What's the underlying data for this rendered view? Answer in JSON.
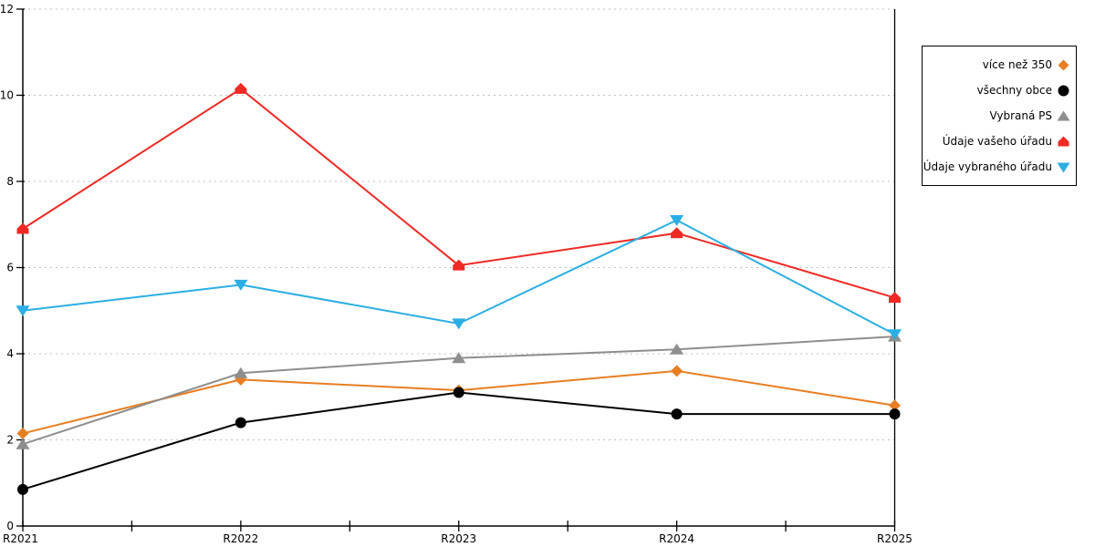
{
  "chart_data": {
    "type": "line",
    "title": "",
    "xlabel": "",
    "ylabel": "",
    "categories": [
      "R2021",
      "R2022",
      "R2023",
      "R2024",
      "R2025"
    ],
    "series": [
      {
        "name": "více než 350",
        "marker": "diamond",
        "color": "#E87E22",
        "values": [
          2.15,
          3.4,
          3.15,
          3.6,
          2.8
        ]
      },
      {
        "name": "všechny obce",
        "marker": "circle",
        "color": "#000000",
        "values": [
          0.85,
          2.4,
          3.1,
          2.6,
          2.6
        ]
      },
      {
        "name": "Vybraná PS",
        "marker": "triangle-up",
        "color": "#8E8E8E",
        "values": [
          1.9,
          3.55,
          3.9,
          4.1,
          4.4
        ]
      },
      {
        "name": "Údaje vašeho úřadu",
        "marker": "pentagon",
        "color": "#EE2A24",
        "values": [
          6.9,
          10.15,
          6.05,
          6.8,
          5.3
        ]
      },
      {
        "name": "Údaje vybraného úřadu",
        "marker": "triangle-down",
        "color": "#2BAEE4",
        "values": [
          5.0,
          5.6,
          4.7,
          7.1,
          4.45
        ]
      }
    ],
    "ylim": [
      0,
      12
    ],
    "yticks": [
      0,
      2,
      4,
      6,
      8,
      10,
      12
    ],
    "grid": "horizontal-dotted",
    "grid_color": "#BFBFBF",
    "axis_color": "#000000",
    "legend_position": "right"
  }
}
